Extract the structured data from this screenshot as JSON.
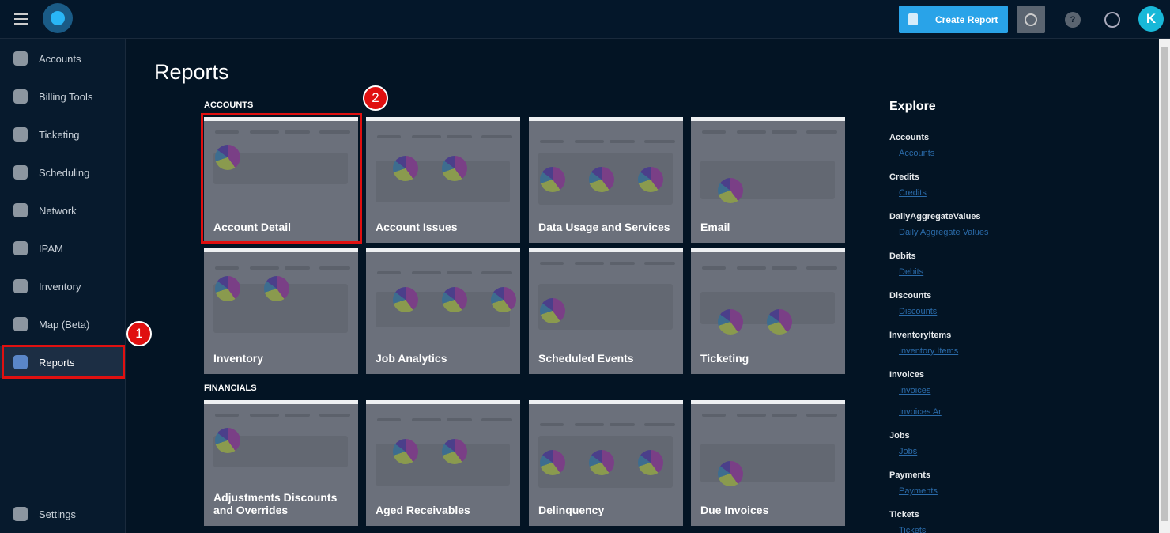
{
  "topbar": {
    "create_report": "Create Report",
    "help": "?",
    "avatar": "K"
  },
  "sidebar": {
    "items": [
      "Accounts",
      "Billing Tools",
      "Ticketing",
      "Scheduling",
      "Network",
      "IPAM",
      "Inventory",
      "Map (Beta)",
      "Reports"
    ],
    "settings": "Settings"
  },
  "annotations": [
    "1",
    "2"
  ],
  "main": {
    "title": "Reports",
    "sections": [
      {
        "heading": "ACCOUNTS",
        "cards": [
          "Account Detail",
          "Account Issues",
          "Data Usage and Services",
          "Email",
          "Inventory",
          "Job Analytics",
          "Scheduled Events",
          "Ticketing"
        ]
      },
      {
        "heading": "FINANCIALS",
        "cards": [
          "Adjustments Discounts and Overrides",
          "Aged Receivables",
          "Delinquency",
          "Due Invoices"
        ]
      }
    ]
  },
  "explore": {
    "title": "Explore",
    "groups": [
      {
        "heading": "Accounts",
        "links": [
          "Accounts"
        ]
      },
      {
        "heading": "Credits",
        "links": [
          "Credits"
        ]
      },
      {
        "heading": "DailyAggregateValues",
        "links": [
          "Daily Aggregate Values"
        ]
      },
      {
        "heading": "Debits",
        "links": [
          "Debits"
        ]
      },
      {
        "heading": "Discounts",
        "links": [
          "Discounts"
        ]
      },
      {
        "heading": "InventoryItems",
        "links": [
          "Inventory Items"
        ]
      },
      {
        "heading": "Invoices",
        "links": [
          "Invoices",
          "Invoices Ar"
        ]
      },
      {
        "heading": "Jobs",
        "links": [
          "Jobs"
        ]
      },
      {
        "heading": "Payments",
        "links": [
          "Payments"
        ]
      },
      {
        "heading": "Tickets",
        "links": [
          "Tickets"
        ]
      }
    ]
  }
}
